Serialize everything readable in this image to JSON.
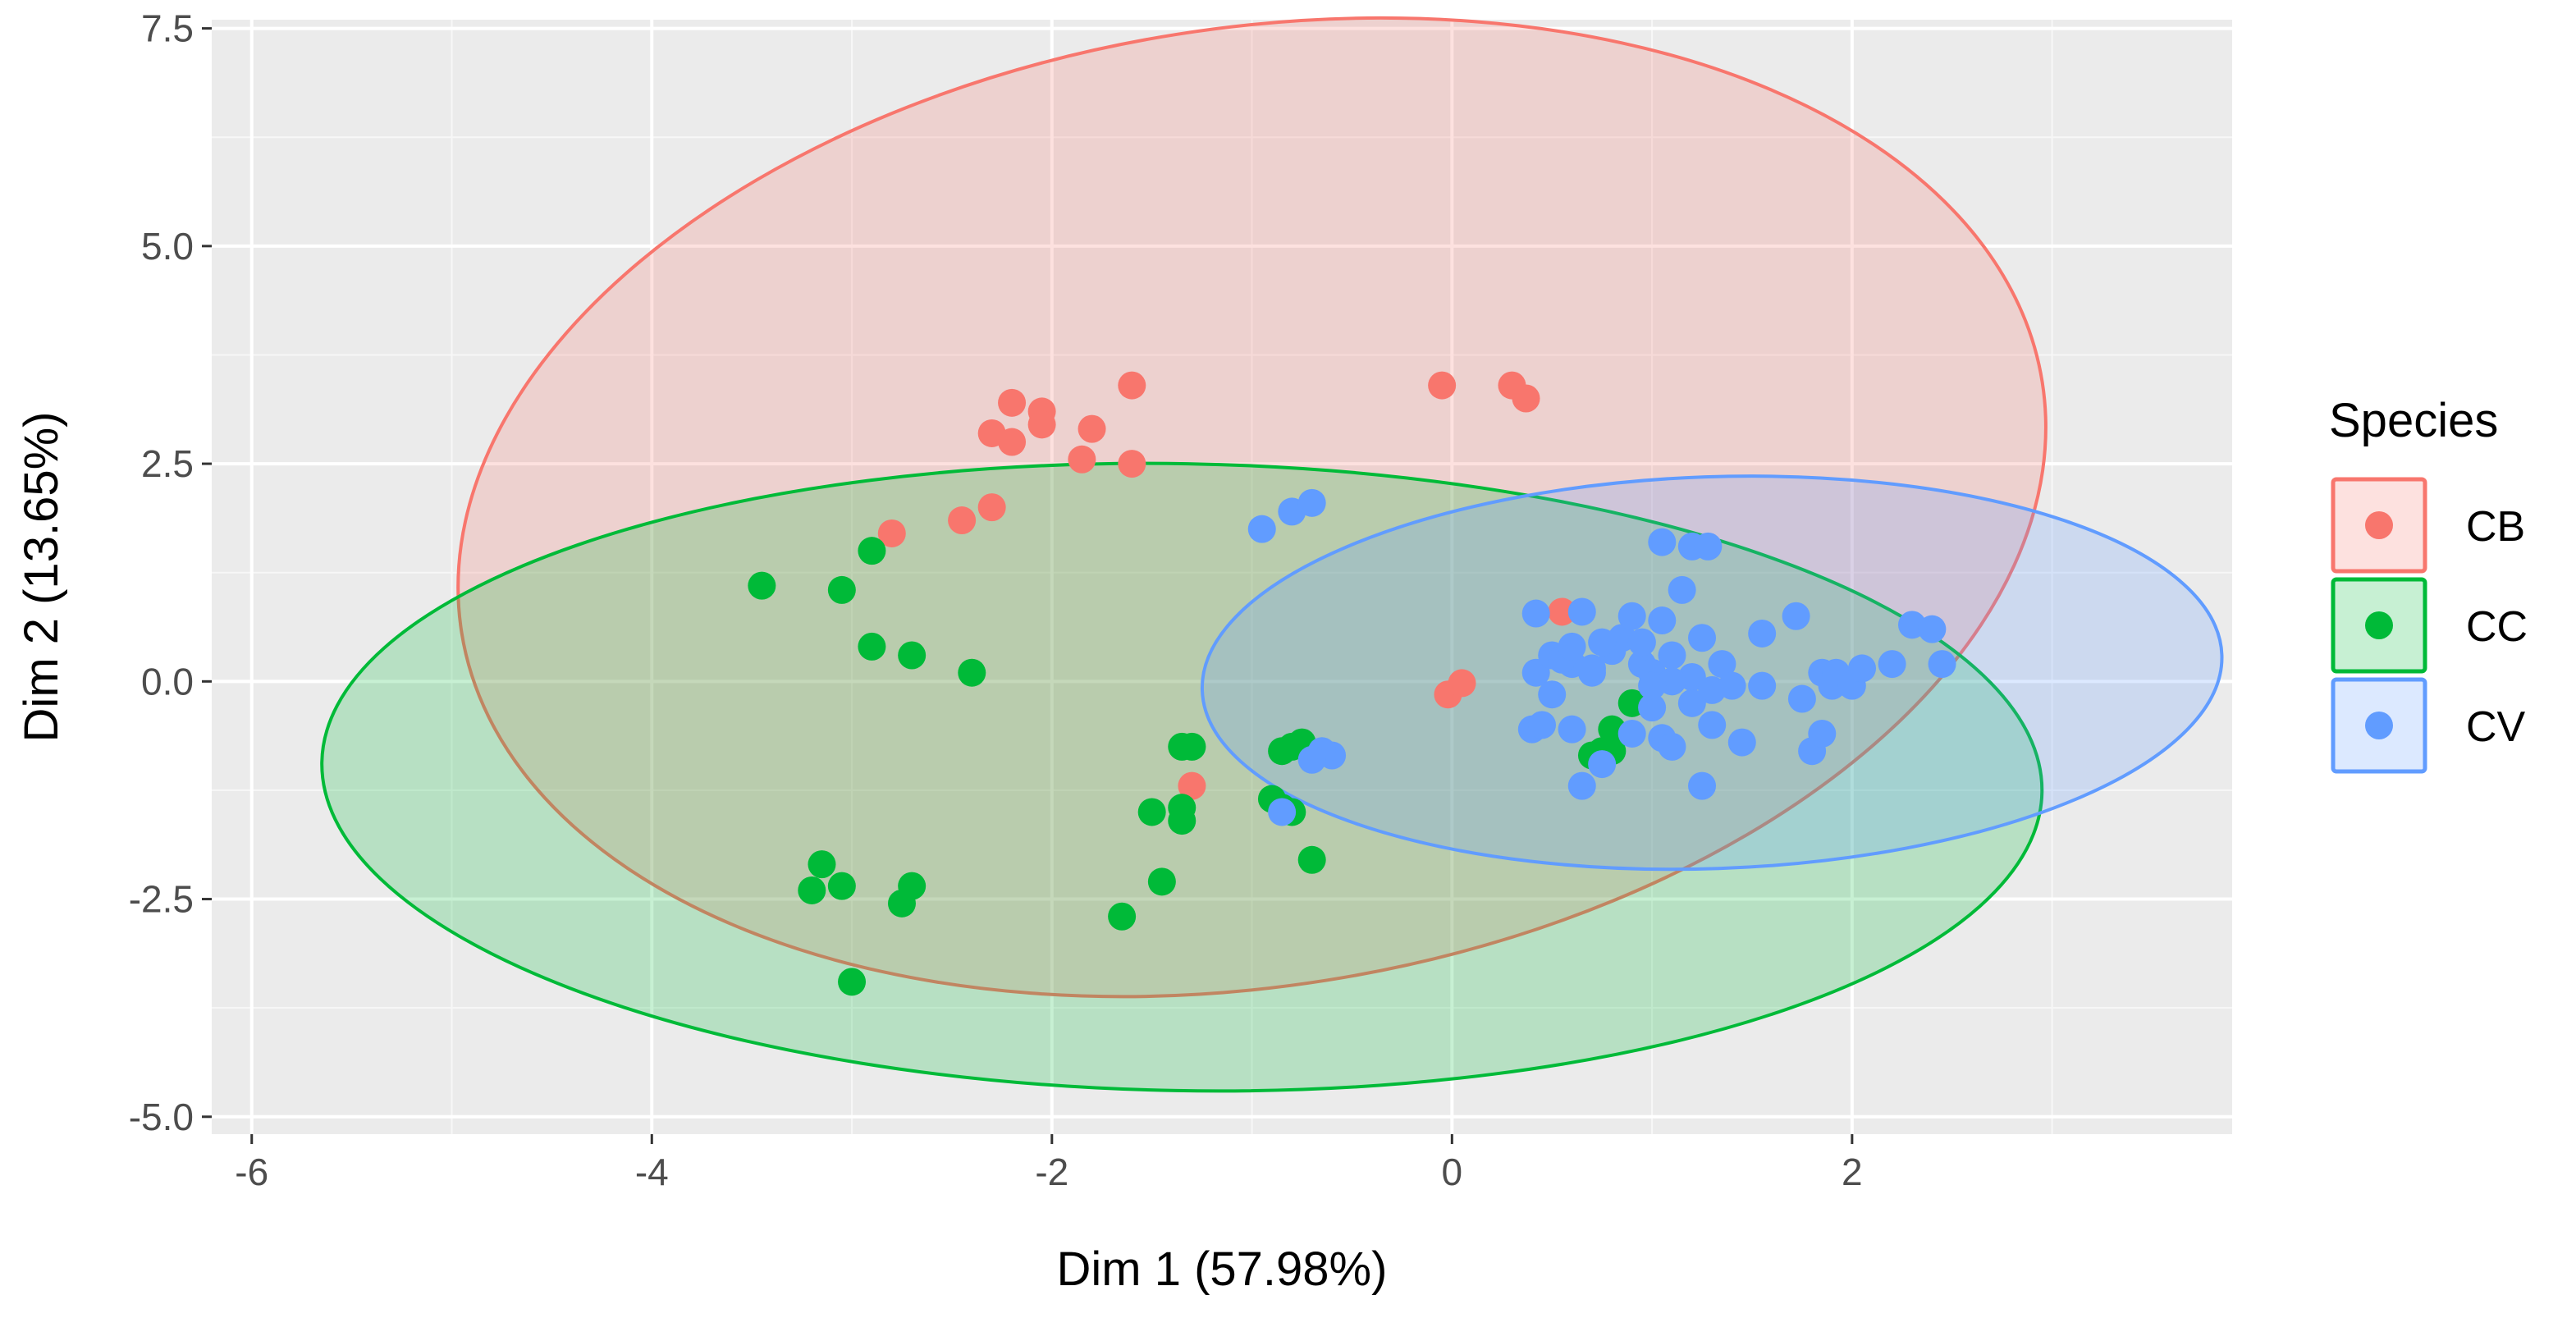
{
  "chart_data": {
    "type": "scatter",
    "title": "",
    "xlabel": "Dim 1 (57.98%)",
    "ylabel": "Dim 2 (13.65%)",
    "xlim": [
      -6.2,
      3.9
    ],
    "ylim": [
      -5.2,
      7.6
    ],
    "x_ticks": [
      -6,
      -4,
      -2,
      0,
      2
    ],
    "x_tick_labels": [
      "-6",
      "-4",
      "-2",
      "0",
      "2"
    ],
    "y_ticks": [
      -5,
      -2.5,
      0,
      2.5,
      5,
      7.5
    ],
    "y_tick_labels": [
      "-5.0",
      "-2.5",
      "0.0",
      "2.5",
      "5.0",
      "7.5"
    ],
    "grid": true,
    "background": "#ebebeb",
    "legend": {
      "title": "Species",
      "position": "right",
      "entries": [
        {
          "label": "CB",
          "color": "#f8766d"
        },
        {
          "label": "CC",
          "color": "#00ba38"
        },
        {
          "label": "CV",
          "color": "#619cff"
        }
      ]
    },
    "ellipses": [
      {
        "series": "CB",
        "cx": -1.0,
        "cy": 2.0,
        "rx": 4.0,
        "ry": 5.5,
        "angle_deg": -9
      },
      {
        "series": "CC",
        "cx": -1.35,
        "cy": -1.1,
        "rx": 4.3,
        "ry": 3.6,
        "angle_deg": 1
      },
      {
        "series": "CV",
        "cx": 1.3,
        "cy": 0.1,
        "rx": 2.55,
        "ry": 2.25,
        "angle_deg": -2
      }
    ],
    "series": [
      {
        "name": "CB",
        "color": "#f8766d",
        "points": [
          [
            -2.2,
            3.2
          ],
          [
            -2.05,
            3.1
          ],
          [
            -2.3,
            2.85
          ],
          [
            -2.2,
            2.75
          ],
          [
            -2.05,
            2.95
          ],
          [
            -1.8,
            2.9
          ],
          [
            -1.85,
            2.55
          ],
          [
            -1.6,
            2.5
          ],
          [
            -1.6,
            3.4
          ],
          [
            -2.3,
            2.0
          ],
          [
            -2.45,
            1.85
          ],
          [
            -2.8,
            1.7
          ],
          [
            -0.05,
            3.4
          ],
          [
            0.3,
            3.4
          ],
          [
            0.37,
            3.25
          ],
          [
            0.55,
            0.8
          ],
          [
            -0.02,
            -0.15
          ],
          [
            0.05,
            -0.02
          ],
          [
            -1.3,
            -1.2
          ]
        ]
      },
      {
        "name": "CC",
        "color": "#00ba38",
        "points": [
          [
            -3.45,
            1.1
          ],
          [
            -3.05,
            1.05
          ],
          [
            -2.9,
            1.5
          ],
          [
            -2.9,
            0.4
          ],
          [
            -2.7,
            0.3
          ],
          [
            -2.4,
            0.1
          ],
          [
            -3.15,
            -2.1
          ],
          [
            -3.05,
            -2.35
          ],
          [
            -3.2,
            -2.4
          ],
          [
            -2.7,
            -2.35
          ],
          [
            -2.75,
            -2.55
          ],
          [
            -3.0,
            -3.45
          ],
          [
            -1.5,
            -1.5
          ],
          [
            -1.35,
            -1.45
          ],
          [
            -1.35,
            -1.6
          ],
          [
            -1.3,
            -0.75
          ],
          [
            -1.35,
            -0.75
          ],
          [
            -1.45,
            -2.3
          ],
          [
            -1.65,
            -2.7
          ],
          [
            -0.9,
            -1.35
          ],
          [
            -0.8,
            -1.5
          ],
          [
            -0.85,
            -1.45
          ],
          [
            -0.7,
            -2.05
          ],
          [
            -0.8,
            -0.75
          ],
          [
            -0.85,
            -0.8
          ],
          [
            -0.75,
            -0.7
          ],
          [
            0.9,
            -0.25
          ],
          [
            0.75,
            -0.8
          ],
          [
            0.8,
            -0.55
          ],
          [
            0.7,
            -0.85
          ],
          [
            0.8,
            -0.8
          ]
        ]
      },
      {
        "name": "CV",
        "color": "#619cff",
        "points": [
          [
            -0.95,
            1.75
          ],
          [
            -0.8,
            1.95
          ],
          [
            -0.7,
            2.05
          ],
          [
            -0.6,
            -0.85
          ],
          [
            -0.65,
            -0.8
          ],
          [
            -0.7,
            -0.9
          ],
          [
            -0.85,
            -1.5
          ],
          [
            0.42,
            0.78
          ],
          [
            0.65,
            0.8
          ],
          [
            0.42,
            0.1
          ],
          [
            0.5,
            0.3
          ],
          [
            0.6,
            0.2
          ],
          [
            0.7,
            0.1
          ],
          [
            0.8,
            0.35
          ],
          [
            0.85,
            0.5
          ],
          [
            0.9,
            0.75
          ],
          [
            0.95,
            0.2
          ],
          [
            1.0,
            0.1
          ],
          [
            1.05,
            0.7
          ],
          [
            1.1,
            0.3
          ],
          [
            1.15,
            1.05
          ],
          [
            1.2,
            0.05
          ],
          [
            1.25,
            0.5
          ],
          [
            1.3,
            -0.1
          ],
          [
            1.35,
            0.2
          ],
          [
            1.05,
            1.6
          ],
          [
            1.2,
            1.55
          ],
          [
            1.28,
            1.55
          ],
          [
            0.5,
            -0.15
          ],
          [
            0.55,
            0.25
          ],
          [
            0.6,
            -0.55
          ],
          [
            0.4,
            -0.55
          ],
          [
            0.45,
            -0.5
          ],
          [
            0.65,
            -1.2
          ],
          [
            0.75,
            -0.95
          ],
          [
            0.9,
            -0.6
          ],
          [
            1.0,
            -0.3
          ],
          [
            1.05,
            -0.65
          ],
          [
            1.1,
            -0.75
          ],
          [
            1.2,
            -0.25
          ],
          [
            1.25,
            -1.2
          ],
          [
            1.3,
            -0.5
          ],
          [
            1.4,
            -0.05
          ],
          [
            1.45,
            -0.7
          ],
          [
            1.55,
            -0.05
          ],
          [
            1.55,
            0.55
          ],
          [
            1.72,
            0.75
          ],
          [
            1.75,
            -0.2
          ],
          [
            1.8,
            -0.8
          ],
          [
            1.85,
            -0.6
          ],
          [
            1.85,
            0.1
          ],
          [
            1.9,
            -0.05
          ],
          [
            1.92,
            0.1
          ],
          [
            2.0,
            -0.05
          ],
          [
            2.05,
            0.15
          ],
          [
            2.2,
            0.2
          ],
          [
            2.3,
            0.65
          ],
          [
            2.4,
            0.6
          ],
          [
            2.45,
            0.2
          ],
          [
            0.7,
            0.15
          ],
          [
            0.75,
            0.45
          ],
          [
            0.95,
            0.45
          ],
          [
            1.1,
            0.0
          ],
          [
            0.6,
            0.4
          ],
          [
            1.0,
            -0.05
          ]
        ]
      }
    ]
  }
}
